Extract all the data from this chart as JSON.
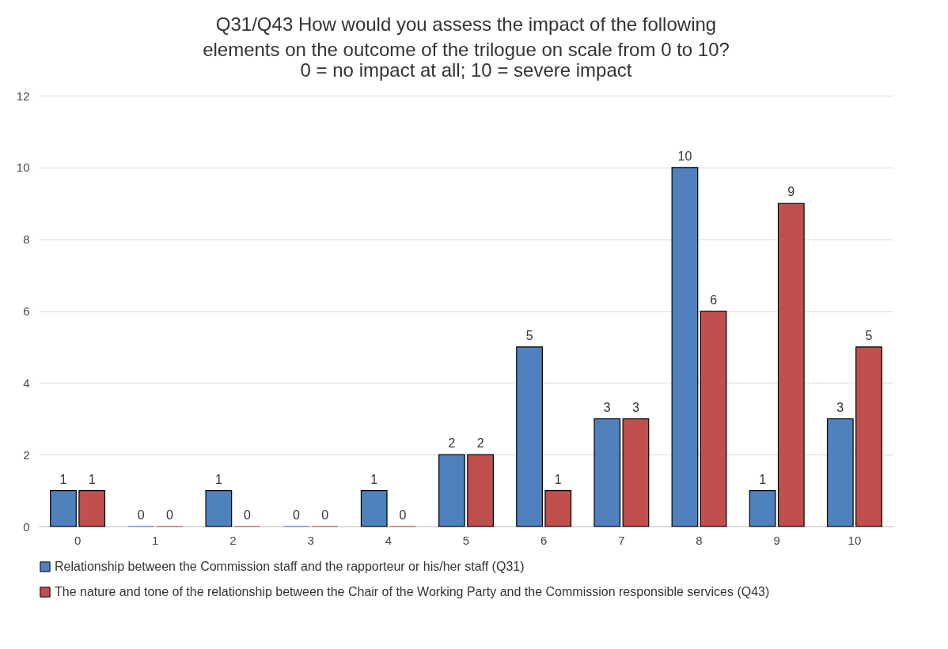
{
  "chart_data": {
    "type": "bar",
    "title": "Q31/Q43 How would you assess the impact of the following elements on the outcome of the trilogue on scale from 0 to 10?",
    "subtitle": "0 = no impact at all; 10 = severe impact",
    "categories": [
      "0",
      "1",
      "2",
      "3",
      "4",
      "5",
      "6",
      "7",
      "8",
      "9",
      "10"
    ],
    "series": [
      {
        "name": "Relationship between the Commission staff and the rapporteur or his/her staff (Q31)",
        "color": "#4f81bd",
        "values": [
          1,
          0,
          1,
          0,
          1,
          2,
          5,
          3,
          10,
          1,
          3
        ]
      },
      {
        "name": "The nature and tone of the relationship between the Chair of the Working Party and the Commission responsible services (Q43)",
        "color": "#c0504d",
        "values": [
          1,
          0,
          0,
          0,
          0,
          2,
          1,
          3,
          6,
          9,
          5
        ]
      }
    ],
    "ylim": [
      0,
      12
    ],
    "yticks": [
      0,
      2,
      4,
      6,
      8,
      10,
      12
    ],
    "grid": "y",
    "legend": "bottom",
    "data_labels": true
  }
}
